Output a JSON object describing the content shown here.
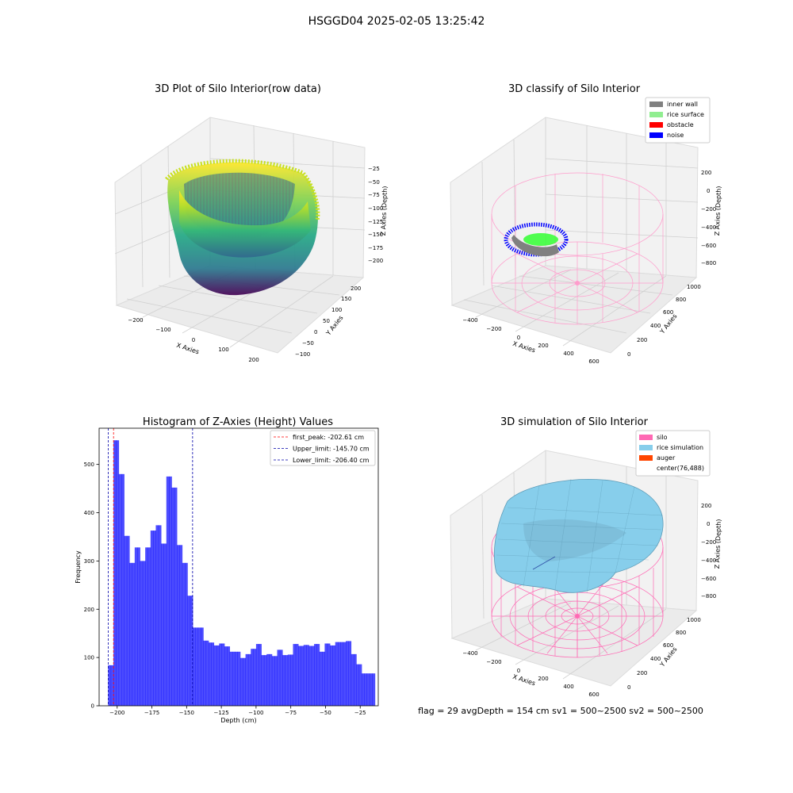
{
  "figure": {
    "suptitle": "HSGGD04 2025-02-05 13:25:42"
  },
  "panel1": {
    "title": "3D Plot of Silo Interior(row data)",
    "xlabel": "X Axies",
    "ylabel": "Y Axies",
    "zlabel": "Z Axies (Depth)",
    "xticks": [
      "−200",
      "−100",
      "0",
      "100",
      "200"
    ],
    "yticks": [
      "−100",
      "−50",
      "0",
      "50",
      "100",
      "150",
      "200"
    ],
    "zticks": [
      "−25",
      "−50",
      "−75",
      "−100",
      "−125",
      "−150",
      "−175",
      "−200"
    ]
  },
  "panel2": {
    "title": "3D classify of Silo Interior",
    "xlabel": "X Axies",
    "ylabel": "Y Axies",
    "zlabel": "Z Axies (Depth)",
    "xticks": [
      "−400",
      "−200",
      "0",
      "200",
      "400",
      "600"
    ],
    "yticks": [
      "0",
      "200",
      "400",
      "600",
      "800",
      "1000"
    ],
    "zticks": [
      "200",
      "0",
      "−200",
      "−400",
      "−600",
      "−800"
    ],
    "legend": [
      {
        "label": "inner wall",
        "color": "#808080"
      },
      {
        "label": "rice surface",
        "color": "#90ee90"
      },
      {
        "label": "obstacle",
        "color": "#ff0000"
      },
      {
        "label": "noise",
        "color": "#0000ff"
      }
    ]
  },
  "panel4": {
    "title": "3D simulation of Silo Interior",
    "xlabel": "X Axies",
    "ylabel": "Y Axies",
    "zlabel": "Z Axies (Depth)",
    "xticks": [
      "−400",
      "−200",
      "0",
      "200",
      "400",
      "600"
    ],
    "yticks": [
      "0",
      "200",
      "400",
      "600",
      "800",
      "1000"
    ],
    "zticks": [
      "200",
      "0",
      "−200",
      "−400",
      "−600",
      "−800"
    ],
    "legend": [
      {
        "label": "silo",
        "color": "#ff69b4"
      },
      {
        "label": "rice simulation",
        "color": "#87ceeb"
      },
      {
        "label": "auger",
        "color": "#ff4500"
      },
      {
        "label": "center(76,488)",
        "color": ""
      }
    ],
    "footer": "flag = 29  avgDepth = 154 cm  sv1 = 500~2500  sv2 = 500~2500"
  },
  "chart_data": {
    "type": "bar",
    "title": "Histogram of Z-Axies (Height) Values",
    "xlabel": "Depth (cm)",
    "ylabel": "Frequency",
    "xlim": [
      -213,
      -12
    ],
    "ylim": [
      0,
      575
    ],
    "x_ticks": [
      -200,
      -175,
      -150,
      -125,
      -100,
      -75,
      -50,
      -25
    ],
    "x_tick_labels": [
      "−200",
      "−175",
      "−150",
      "−125",
      "−100",
      "−75",
      "−50",
      "−25"
    ],
    "y_ticks": [
      0,
      100,
      200,
      300,
      400,
      500
    ],
    "bin_edges": [
      -206.5,
      -204.6,
      -202.7,
      -200.8,
      -198.9,
      -197.0,
      -195.0,
      -193.1,
      -191.2,
      -189.3,
      -187.4,
      -185.5,
      -183.6,
      -181.7,
      -179.8,
      -177.9,
      -176.0,
      -174.1,
      -172.2,
      -170.3,
      -168.4,
      -166.5,
      -164.6,
      -162.7,
      -160.8,
      -158.9,
      -157.0,
      -155.1,
      -153.2,
      -151.3,
      -149.4,
      -147.5,
      -145.6,
      -143.7,
      -141.8,
      -139.9,
      -138.0,
      -136.1,
      -134.2,
      -132.3,
      -130.4,
      -128.5,
      -126.6,
      -124.7,
      -122.8,
      -120.9,
      -119.0,
      -117.1,
      -115.2,
      -113.3,
      -111.4,
      -109.5,
      -107.6,
      -105.7,
      -103.8,
      -101.9,
      -100.0,
      -98.1,
      -96.2,
      -94.3,
      -92.4,
      -90.5,
      -88.6,
      -86.7,
      -84.8,
      -82.9,
      -81.0,
      -79.1,
      -77.2,
      -75.3,
      -73.4,
      -71.5,
      -69.6,
      -67.7,
      -65.8,
      -63.9,
      -62.0,
      -60.1,
      -58.2,
      -56.3,
      -54.4,
      -52.5,
      -50.6,
      -48.7,
      -46.8,
      -44.9,
      -43.0,
      -41.1,
      -39.2,
      -37.3,
      -35.4,
      -33.5,
      -31.6,
      -29.7,
      -27.8,
      -25.9,
      -24.0,
      -22.1,
      -20.2,
      -18.3,
      -16.4,
      -14.4
    ],
    "series": [
      {
        "color": "#0000ff",
        "opacity": 0.7,
        "values": [
          84,
          84,
          550,
          550,
          480,
          480,
          352,
          352,
          296,
          296,
          328,
          328,
          300,
          300,
          328,
          328,
          363,
          363,
          374,
          374,
          336,
          336,
          475,
          475,
          452,
          452,
          333,
          333,
          296,
          296,
          228,
          228,
          162,
          162,
          162,
          162,
          135,
          135,
          131,
          131,
          125,
          125,
          129,
          129,
          123,
          123,
          112,
          112,
          112,
          112,
          99,
          99,
          107,
          107,
          118,
          118,
          128,
          128,
          105,
          105,
          107,
          107,
          103,
          103,
          116,
          116,
          105,
          105,
          106,
          106,
          128,
          128,
          124,
          124,
          126,
          126,
          124,
          124,
          128,
          128,
          112,
          112,
          129,
          129,
          125,
          125,
          132,
          132,
          132,
          132,
          134,
          134,
          107,
          107,
          86,
          86,
          67,
          67,
          67,
          67,
          67
        ]
      }
    ],
    "reference_lines": [
      {
        "x": -202.61,
        "color": "#ff0000",
        "label": "first_peak: -202.61 cm"
      },
      {
        "x": -145.7,
        "color": "#0000aa",
        "label": "Upper_limit: -145.70 cm"
      },
      {
        "x": -206.4,
        "color": "#0000aa",
        "label": "Lower_limit: -206.40 cm"
      }
    ]
  }
}
